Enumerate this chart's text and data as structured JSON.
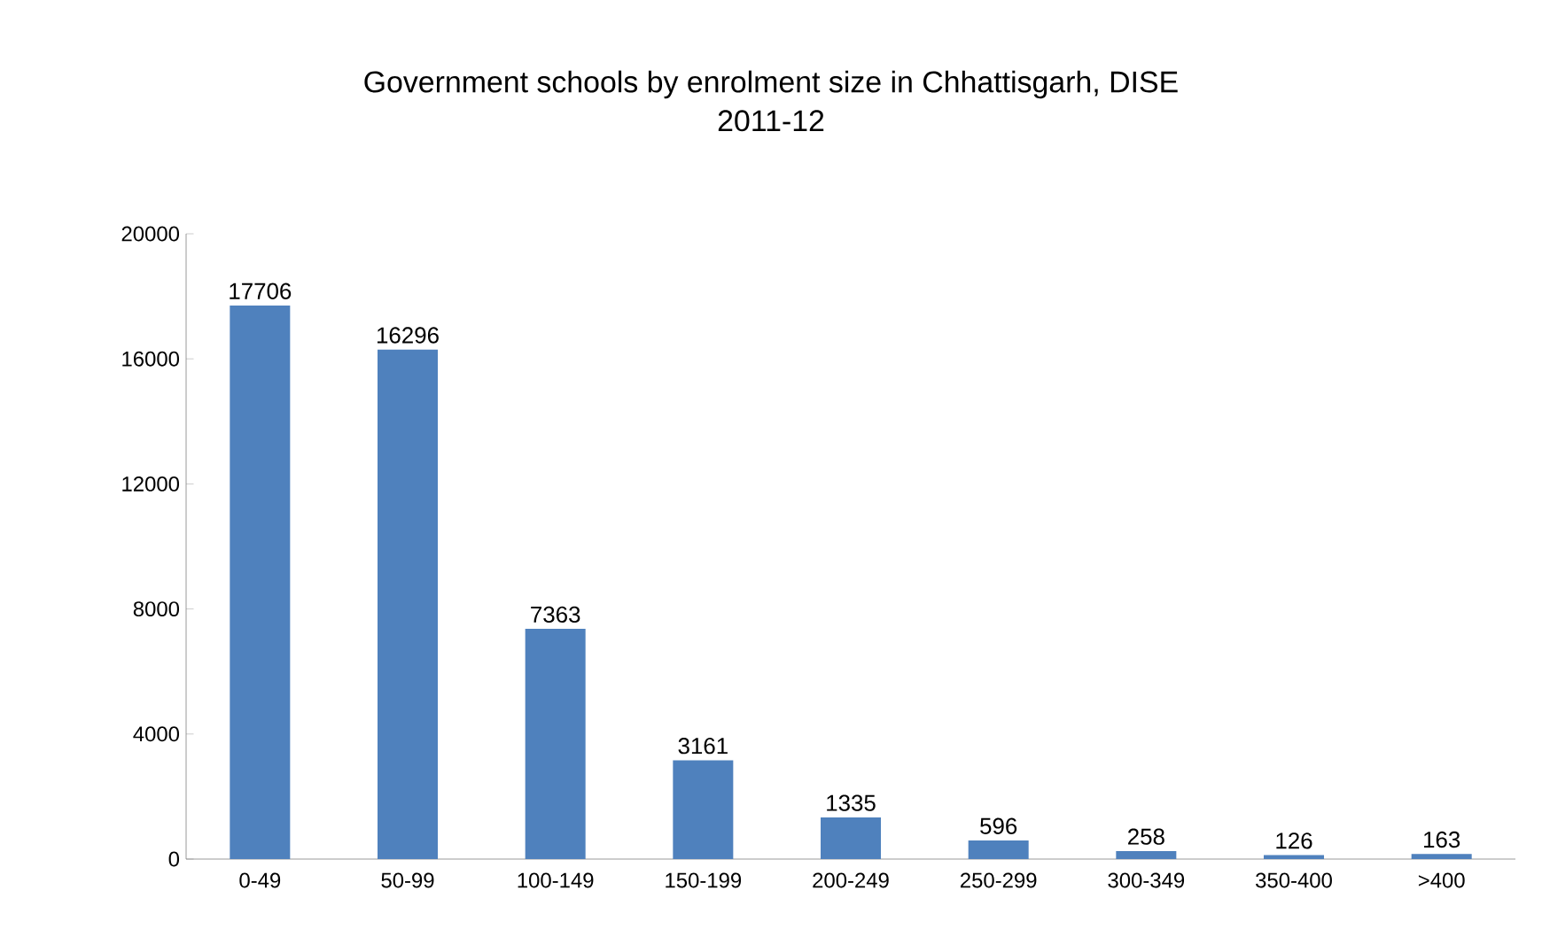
{
  "chart_data": {
    "type": "bar",
    "title": "Government schools by enrolment size in Chhattisgarh, DISE 2011-12",
    "categories": [
      "0-49",
      "50-99",
      "100-149",
      "150-199",
      "200-249",
      "250-299",
      "300-349",
      "350-400",
      ">400"
    ],
    "values": [
      17706,
      16296,
      7363,
      3161,
      1335,
      596,
      258,
      126,
      163
    ],
    "color": "#4f81bd",
    "data_labels": true,
    "grid": false,
    "ylim": [
      0,
      20000
    ],
    "yticks": [
      0,
      4000,
      8000,
      12000,
      16000,
      20000
    ]
  }
}
